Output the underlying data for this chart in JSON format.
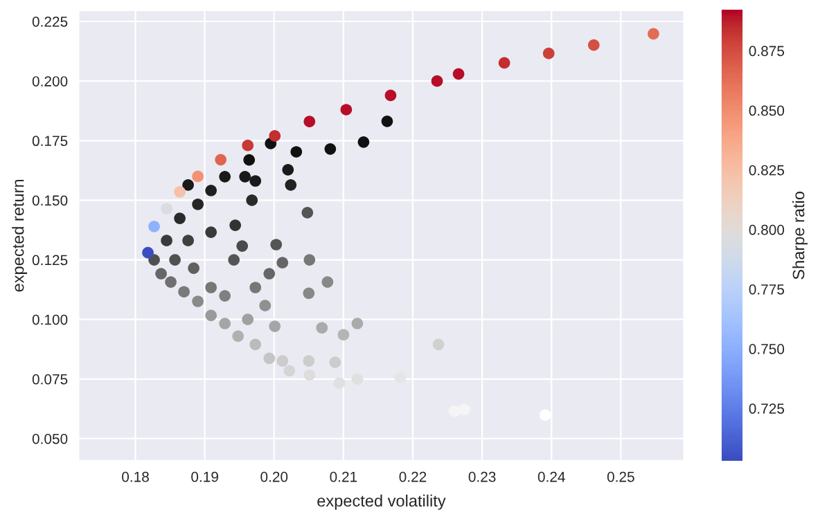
{
  "chart_data": {
    "type": "scatter",
    "xlabel": "expected volatility",
    "ylabel": "expected return",
    "clabel": "Sharpe ratio",
    "xlim": [
      0.1718,
      0.2591
    ],
    "ylim": [
      0.0407,
      0.2297
    ],
    "xticks": [
      {
        "value": 0.18,
        "label": "0.18"
      },
      {
        "value": 0.19,
        "label": "0.19"
      },
      {
        "value": 0.2,
        "label": "0.20"
      },
      {
        "value": 0.21,
        "label": "0.21"
      },
      {
        "value": 0.22,
        "label": "0.22"
      },
      {
        "value": 0.23,
        "label": "0.23"
      },
      {
        "value": 0.24,
        "label": "0.24"
      },
      {
        "value": 0.25,
        "label": "0.25"
      }
    ],
    "yticks": [
      {
        "value": 0.05,
        "label": "0.050"
      },
      {
        "value": 0.075,
        "label": "0.075"
      },
      {
        "value": 0.1,
        "label": "0.100"
      },
      {
        "value": 0.125,
        "label": "0.125"
      },
      {
        "value": 0.15,
        "label": "0.150"
      },
      {
        "value": 0.175,
        "label": "0.175"
      },
      {
        "value": 0.2,
        "label": "0.200"
      },
      {
        "value": 0.225,
        "label": "0.225"
      }
    ],
    "clim": [
      0.703,
      0.892
    ],
    "cticks": [
      {
        "value": 0.725,
        "label": "0.725"
      },
      {
        "value": 0.75,
        "label": "0.750"
      },
      {
        "value": 0.775,
        "label": "0.775"
      },
      {
        "value": 0.8,
        "label": "0.800"
      },
      {
        "value": 0.825,
        "label": "0.825"
      },
      {
        "value": 0.85,
        "label": "0.850"
      },
      {
        "value": 0.875,
        "label": "0.875"
      }
    ],
    "grid": true,
    "legend": false,
    "marker": "circle",
    "series": [
      {
        "x": [
          0.2163,
          0.2129,
          0.2081,
          0.2032,
          0.1995,
          0.202,
          0.2024,
          0.1973,
          0.1964,
          0.1958,
          0.2048,
          0.1968,
          0.1944,
          0.2003,
          0.2051,
          0.2077,
          0.205,
          0.2012,
          0.1993,
          0.212,
          0.21,
          0.2069,
          0.2237,
          0.2182,
          0.212,
          0.2094,
          0.2088,
          0.205,
          0.2051,
          0.2022,
          0.2012,
          0.1993,
          0.1973,
          0.1948,
          0.1929,
          0.1909,
          0.189,
          0.187,
          0.1851,
          0.1837,
          0.1827,
          0.1876,
          0.1909,
          0.1864,
          0.189,
          0.1909,
          0.1929,
          0.1876,
          0.1942,
          0.1973,
          0.1987,
          0.1962,
          0.2001,
          0.1909,
          0.1884,
          0.1929,
          0.1845,
          0.1857,
          0.1954,
          0.226,
          0.2274,
          0.2391
        ],
        "values": [
          0.1831,
          0.1744,
          0.1715,
          0.1703,
          0.1738,
          0.1628,
          0.1564,
          0.1581,
          0.1669,
          0.1599,
          0.1448,
          0.15,
          0.1395,
          0.1314,
          0.125,
          0.1157,
          0.111,
          0.1238,
          0.1192,
          0.0983,
          0.0936,
          0.0965,
          0.0895,
          0.0756,
          0.075,
          0.0733,
          0.082,
          0.0826,
          0.0767,
          0.0785,
          0.0826,
          0.0837,
          0.0895,
          0.093,
          0.0983,
          0.1017,
          0.1076,
          0.1116,
          0.1157,
          0.1192,
          0.125,
          0.1331,
          0.1366,
          0.1424,
          0.1483,
          0.1541,
          0.1599,
          0.1564,
          0.125,
          0.1134,
          0.1058,
          0.1,
          0.0971,
          0.1134,
          0.1215,
          0.1099,
          0.1331,
          0.125,
          0.1308,
          0.0616,
          0.0622,
          0.0599
        ],
        "colors": [
          "#111111",
          "#111111",
          "#111111",
          "#111111",
          "#111111",
          "#1a1a1a",
          "#222222",
          "#1a1a1a",
          "#111111",
          "#1a1a1a",
          "#555555",
          "#2a2a2a",
          "#333333",
          "#555555",
          "#777777",
          "#888888",
          "#888888",
          "#666666",
          "#666666",
          "#aaaaaa",
          "#b5b5b5",
          "#aaaaaa",
          "#d0d0d0",
          "#e5e5e5",
          "#e0e0e0",
          "#e0e0e0",
          "#cccccc",
          "#cccccc",
          "#dddddd",
          "#d5d5d5",
          "#cccccc",
          "#c5c5c5",
          "#bbbbbb",
          "#b0b0b0",
          "#a5a5a5",
          "#9a9a9a",
          "#8a8a8a",
          "#7a7a7a",
          "#707070",
          "#666666",
          "#505050",
          "#404040",
          "#3a3a3a",
          "#2a2a2a",
          "#252525",
          "#1f1f1f",
          "#1a1a1a",
          "#1a1a1a",
          "#555555",
          "#777777",
          "#909090",
          "#a0a0a0",
          "#a5a5a5",
          "#777777",
          "#606060",
          "#808080",
          "#3a3a3a",
          "#505050",
          "#4a4a4a",
          "#f5f5f5",
          "#f5f5f5",
          "#ffffff"
        ]
      },
      {
        "x": [
          0.1818,
          0.1827,
          0.1845,
          0.1864,
          0.189,
          0.1923,
          0.1962,
          0.2001,
          0.2051,
          0.2104,
          0.2168,
          0.2235,
          0.2266,
          0.2332,
          0.2396,
          0.2461,
          0.2547
        ],
        "values": [
          0.128,
          0.139,
          0.1465,
          0.1535,
          0.16,
          0.167,
          0.173,
          0.177,
          0.183,
          0.188,
          0.194,
          0.2,
          0.203,
          0.2076,
          0.2116,
          0.2151,
          0.2198
        ],
        "colors": [
          "#3b4cc0",
          "#8fb1fe",
          "#d9dce1",
          "#f5c1a9",
          "#f29274",
          "#e0654f",
          "#c83836",
          "#c32e31",
          "#b70d28",
          "#b70d28",
          "#b70d28",
          "#b70d28",
          "#b70d28",
          "#c32e31",
          "#cc403a",
          "#d55042",
          "#e36c55"
        ]
      }
    ]
  }
}
